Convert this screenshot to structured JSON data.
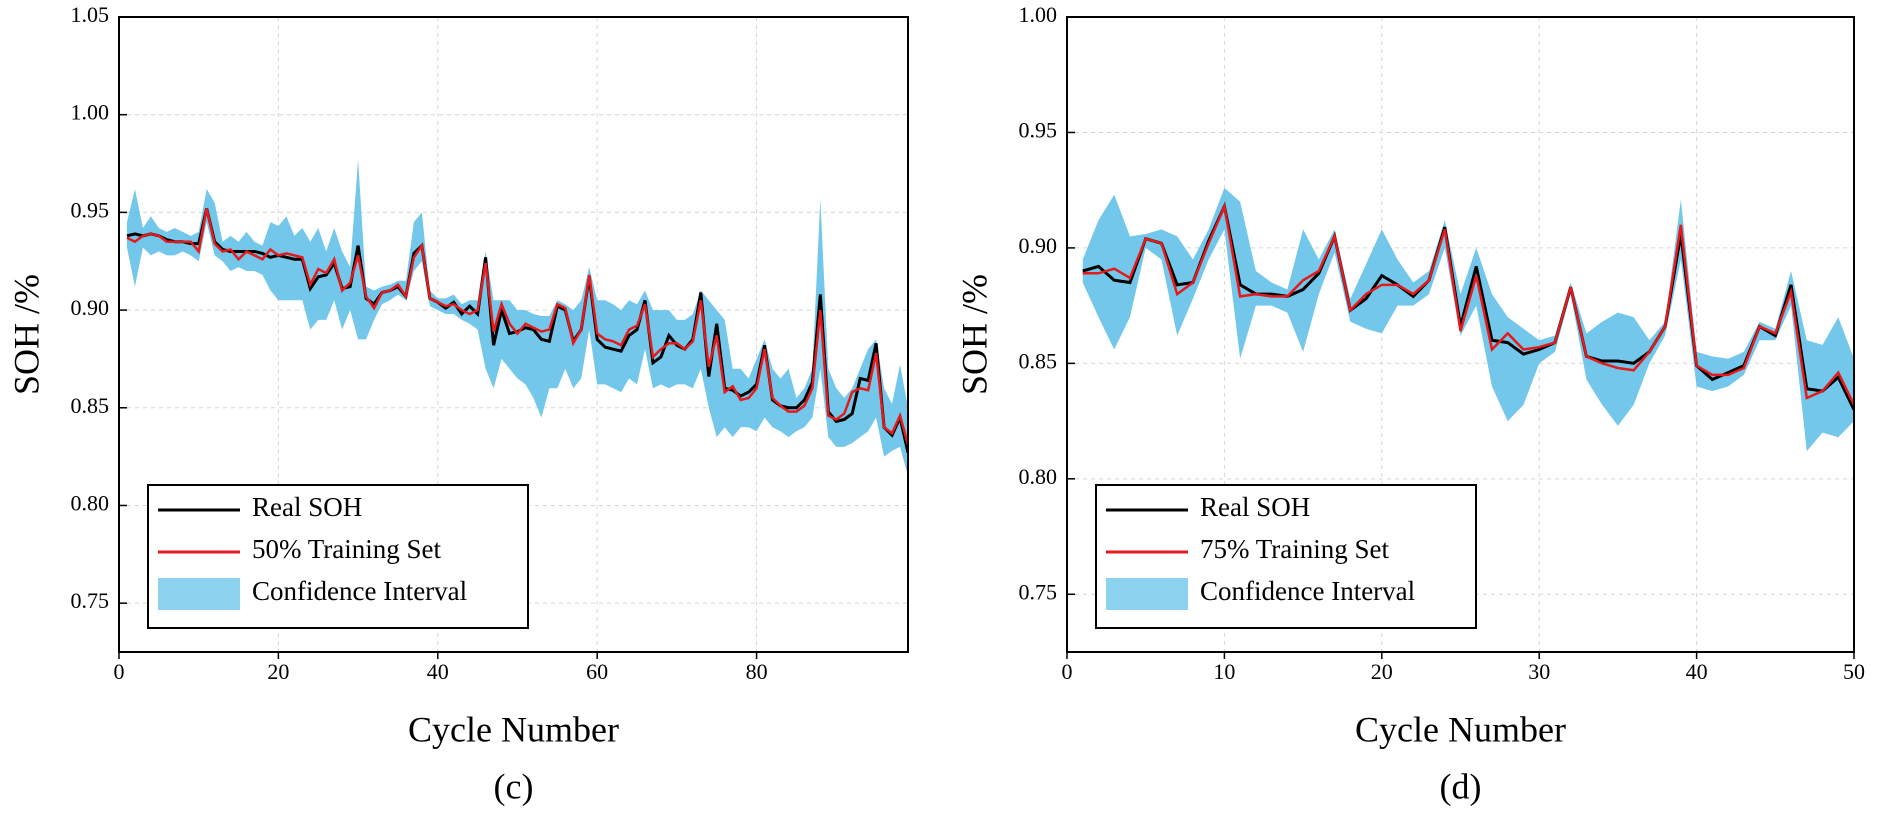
{
  "chart_data": [
    {
      "type": "line",
      "caption": "(c)",
      "xlabel": "Cycle Number",
      "ylabel": "SOH /%",
      "grid": true,
      "legend": "lower left",
      "xlim": [
        0,
        99
      ],
      "xticks": [
        0,
        20,
        40,
        60,
        80
      ],
      "ylim": [
        0.725,
        1.05
      ],
      "yticks": [
        0.75,
        {
          "value": 0.8,
          "label": "0.80"
        },
        0.85,
        {
          "value": 0.9,
          "label": "0.90"
        },
        0.95,
        {
          "value": 1,
          "label": "1.00"
        },
        1.05
      ],
      "x": [
        1,
        2,
        3,
        4,
        5,
        6,
        7,
        8,
        9,
        10,
        11,
        12,
        13,
        14,
        15,
        16,
        17,
        18,
        19,
        20,
        21,
        22,
        23,
        24,
        25,
        26,
        27,
        28,
        29,
        30,
        31,
        32,
        33,
        34,
        35,
        36,
        37,
        38,
        39,
        40,
        41,
        42,
        43,
        44,
        45,
        46,
        47,
        48,
        49,
        50,
        51,
        52,
        53,
        54,
        55,
        56,
        57,
        58,
        59,
        60,
        61,
        62,
        63,
        64,
        65,
        66,
        67,
        68,
        69,
        70,
        71,
        72,
        73,
        74,
        75,
        76,
        77,
        78,
        79,
        80,
        81,
        82,
        83,
        84,
        85,
        86,
        87,
        88,
        89,
        90,
        91,
        92,
        93,
        94,
        95,
        96,
        97,
        98,
        99
      ],
      "series": [
        {
          "name": "Real SOH",
          "color": "#000000",
          "values": [
            0.938,
            0.939,
            0.938,
            0.939,
            0.938,
            0.936,
            0.935,
            0.935,
            0.934,
            0.934,
            0.952,
            0.935,
            0.931,
            0.93,
            0.93,
            0.93,
            0.93,
            0.929,
            0.927,
            0.928,
            0.927,
            0.926,
            0.926,
            0.911,
            0.917,
            0.918,
            0.924,
            0.911,
            0.912,
            0.933,
            0.906,
            0.903,
            0.909,
            0.91,
            0.912,
            0.907,
            0.929,
            0.933,
            0.906,
            0.904,
            0.901,
            0.904,
            0.898,
            0.902,
            0.898,
            0.927,
            0.882,
            0.9,
            0.888,
            0.889,
            0.891,
            0.89,
            0.885,
            0.884,
            0.902,
            0.9,
            0.884,
            0.89,
            0.917,
            0.885,
            0.881,
            0.88,
            0.879,
            0.887,
            0.89,
            0.905,
            0.873,
            0.876,
            0.887,
            0.882,
            0.88,
            0.885,
            0.909,
            0.866,
            0.893,
            0.86,
            0.859,
            0.856,
            0.858,
            0.862,
            0.882,
            0.854,
            0.851,
            0.85,
            0.85,
            0.854,
            0.863,
            0.908,
            0.848,
            0.843,
            0.844,
            0.847,
            0.865,
            0.864,
            0.883,
            0.84,
            0.836,
            0.845,
            0.827
          ]
        },
        {
          "name": "50% Training Set",
          "color": "#e41a1c",
          "values": [
            0.937,
            0.935,
            0.938,
            0.939,
            0.938,
            0.935,
            0.935,
            0.935,
            0.935,
            0.93,
            0.952,
            0.934,
            0.93,
            0.931,
            0.926,
            0.93,
            0.928,
            0.926,
            0.931,
            0.928,
            0.929,
            0.928,
            0.927,
            0.913,
            0.921,
            0.919,
            0.926,
            0.91,
            0.914,
            0.928,
            0.907,
            0.901,
            0.909,
            0.91,
            0.913,
            0.907,
            0.927,
            0.933,
            0.906,
            0.904,
            0.902,
            0.903,
            0.9,
            0.898,
            0.9,
            0.924,
            0.889,
            0.903,
            0.893,
            0.888,
            0.893,
            0.891,
            0.889,
            0.89,
            0.903,
            0.901,
            0.883,
            0.89,
            0.918,
            0.888,
            0.885,
            0.884,
            0.882,
            0.89,
            0.892,
            0.903,
            0.876,
            0.88,
            0.883,
            0.883,
            0.88,
            0.884,
            0.905,
            0.871,
            0.887,
            0.858,
            0.861,
            0.854,
            0.855,
            0.86,
            0.88,
            0.855,
            0.851,
            0.848,
            0.848,
            0.851,
            0.86,
            0.9,
            0.846,
            0.844,
            0.847,
            0.858,
            0.86,
            0.859,
            0.878,
            0.84,
            0.837,
            0.846,
            0.831
          ]
        },
        {
          "name": "Confidence Interval",
          "color": "#5bbde6",
          "upper": [
            0.945,
            0.962,
            0.942,
            0.948,
            0.942,
            0.94,
            0.942,
            0.94,
            0.938,
            0.94,
            0.962,
            0.955,
            0.935,
            0.938,
            0.935,
            0.94,
            0.935,
            0.933,
            0.945,
            0.943,
            0.948,
            0.938,
            0.942,
            0.935,
            0.942,
            0.93,
            0.942,
            0.93,
            0.922,
            0.977,
            0.912,
            0.91,
            0.912,
            0.913,
            0.915,
            0.915,
            0.945,
            0.95,
            0.91,
            0.906,
            0.906,
            0.908,
            0.903,
            0.905,
            0.905,
            0.93,
            0.905,
            0.905,
            0.905,
            0.9,
            0.9,
            0.898,
            0.897,
            0.897,
            0.905,
            0.903,
            0.9,
            0.905,
            0.922,
            0.905,
            0.905,
            0.903,
            0.9,
            0.905,
            0.903,
            0.91,
            0.9,
            0.9,
            0.9,
            0.895,
            0.895,
            0.898,
            0.91,
            0.905,
            0.9,
            0.895,
            0.87,
            0.87,
            0.865,
            0.875,
            0.885,
            0.87,
            0.865,
            0.87,
            0.855,
            0.86,
            0.87,
            0.957,
            0.87,
            0.86,
            0.855,
            0.86,
            0.87,
            0.88,
            0.885,
            0.86,
            0.852,
            0.872,
            0.85
          ],
          "lower": [
            0.932,
            0.912,
            0.932,
            0.928,
            0.93,
            0.928,
            0.928,
            0.93,
            0.928,
            0.925,
            0.945,
            0.928,
            0.925,
            0.92,
            0.922,
            0.92,
            0.92,
            0.918,
            0.91,
            0.905,
            0.905,
            0.905,
            0.905,
            0.89,
            0.895,
            0.895,
            0.905,
            0.89,
            0.9,
            0.885,
            0.885,
            0.895,
            0.903,
            0.905,
            0.908,
            0.905,
            0.92,
            0.925,
            0.902,
            0.9,
            0.898,
            0.898,
            0.895,
            0.893,
            0.89,
            0.87,
            0.86,
            0.875,
            0.87,
            0.865,
            0.862,
            0.855,
            0.845,
            0.86,
            0.86,
            0.87,
            0.86,
            0.865,
            0.89,
            0.862,
            0.862,
            0.86,
            0.858,
            0.865,
            0.862,
            0.88,
            0.86,
            0.862,
            0.86,
            0.862,
            0.862,
            0.86,
            0.87,
            0.85,
            0.835,
            0.84,
            0.835,
            0.84,
            0.84,
            0.838,
            0.845,
            0.84,
            0.838,
            0.835,
            0.838,
            0.84,
            0.845,
            0.87,
            0.835,
            0.83,
            0.83,
            0.832,
            0.835,
            0.838,
            0.845,
            0.825,
            0.828,
            0.83,
            0.815
          ]
        }
      ]
    },
    {
      "type": "line",
      "caption": "(d)",
      "xlabel": "Cycle Number",
      "ylabel": "SOH /%",
      "grid": true,
      "legend": "lower left",
      "xlim": [
        0,
        50
      ],
      "xticks": [
        0,
        10,
        20,
        30,
        40,
        50
      ],
      "ylim": [
        0.725,
        1.0
      ],
      "yticks": [
        0.75,
        {
          "value": 0.8,
          "label": "0.80"
        },
        0.85,
        {
          "value": 0.9,
          "label": "0.90"
        },
        0.95,
        {
          "value": 1,
          "label": "1.00"
        }
      ],
      "x": [
        1,
        2,
        3,
        4,
        5,
        6,
        7,
        8,
        9,
        10,
        11,
        12,
        13,
        14,
        15,
        16,
        17,
        18,
        19,
        20,
        21,
        22,
        23,
        24,
        25,
        26,
        27,
        28,
        29,
        30,
        31,
        32,
        33,
        34,
        35,
        36,
        37,
        38,
        39,
        40,
        41,
        42,
        43,
        44,
        45,
        46,
        47,
        48,
        49,
        50
      ],
      "series": [
        {
          "name": "Real SOH",
          "color": "#000000",
          "values": [
            0.89,
            0.892,
            0.886,
            0.885,
            0.904,
            0.902,
            0.884,
            0.885,
            0.903,
            0.918,
            0.884,
            0.88,
            0.88,
            0.879,
            0.882,
            0.889,
            0.905,
            0.873,
            0.878,
            0.888,
            0.884,
            0.879,
            0.886,
            0.909,
            0.866,
            0.892,
            0.86,
            0.859,
            0.854,
            0.856,
            0.859,
            0.883,
            0.853,
            0.851,
            0.851,
            0.85,
            0.855,
            0.866,
            0.906,
            0.849,
            0.843,
            0.846,
            0.849,
            0.866,
            0.862,
            0.884,
            0.839,
            0.838,
            0.844,
            0.83
          ]
        },
        {
          "name": "75% Training Set",
          "color": "#e41a1c",
          "values": [
            0.889,
            0.889,
            0.891,
            0.887,
            0.904,
            0.902,
            0.88,
            0.885,
            0.902,
            0.918,
            0.879,
            0.88,
            0.879,
            0.879,
            0.886,
            0.89,
            0.905,
            0.873,
            0.88,
            0.884,
            0.884,
            0.88,
            0.886,
            0.908,
            0.864,
            0.888,
            0.856,
            0.863,
            0.856,
            0.857,
            0.859,
            0.883,
            0.853,
            0.85,
            0.848,
            0.847,
            0.855,
            0.866,
            0.91,
            0.849,
            0.845,
            0.845,
            0.848,
            0.866,
            0.863,
            0.881,
            0.835,
            0.838,
            0.846,
            0.832
          ]
        },
        {
          "name": "Confidence Interval",
          "color": "#5bbde6",
          "upper": [
            0.895,
            0.912,
            0.923,
            0.905,
            0.906,
            0.908,
            0.905,
            0.895,
            0.908,
            0.926,
            0.92,
            0.89,
            0.885,
            0.882,
            0.908,
            0.895,
            0.908,
            0.878,
            0.893,
            0.908,
            0.895,
            0.885,
            0.89,
            0.912,
            0.88,
            0.9,
            0.88,
            0.87,
            0.865,
            0.86,
            0.862,
            0.885,
            0.863,
            0.868,
            0.872,
            0.87,
            0.86,
            0.868,
            0.921,
            0.855,
            0.853,
            0.852,
            0.855,
            0.868,
            0.865,
            0.89,
            0.86,
            0.858,
            0.87,
            0.852
          ],
          "lower": [
            0.885,
            0.87,
            0.856,
            0.87,
            0.9,
            0.895,
            0.862,
            0.878,
            0.895,
            0.908,
            0.852,
            0.875,
            0.875,
            0.872,
            0.855,
            0.88,
            0.898,
            0.868,
            0.865,
            0.863,
            0.875,
            0.875,
            0.88,
            0.9,
            0.862,
            0.875,
            0.84,
            0.825,
            0.832,
            0.85,
            0.855,
            0.88,
            0.843,
            0.832,
            0.823,
            0.832,
            0.85,
            0.862,
            0.895,
            0.84,
            0.838,
            0.84,
            0.845,
            0.86,
            0.86,
            0.875,
            0.812,
            0.82,
            0.818,
            0.825
          ]
        }
      ]
    }
  ]
}
